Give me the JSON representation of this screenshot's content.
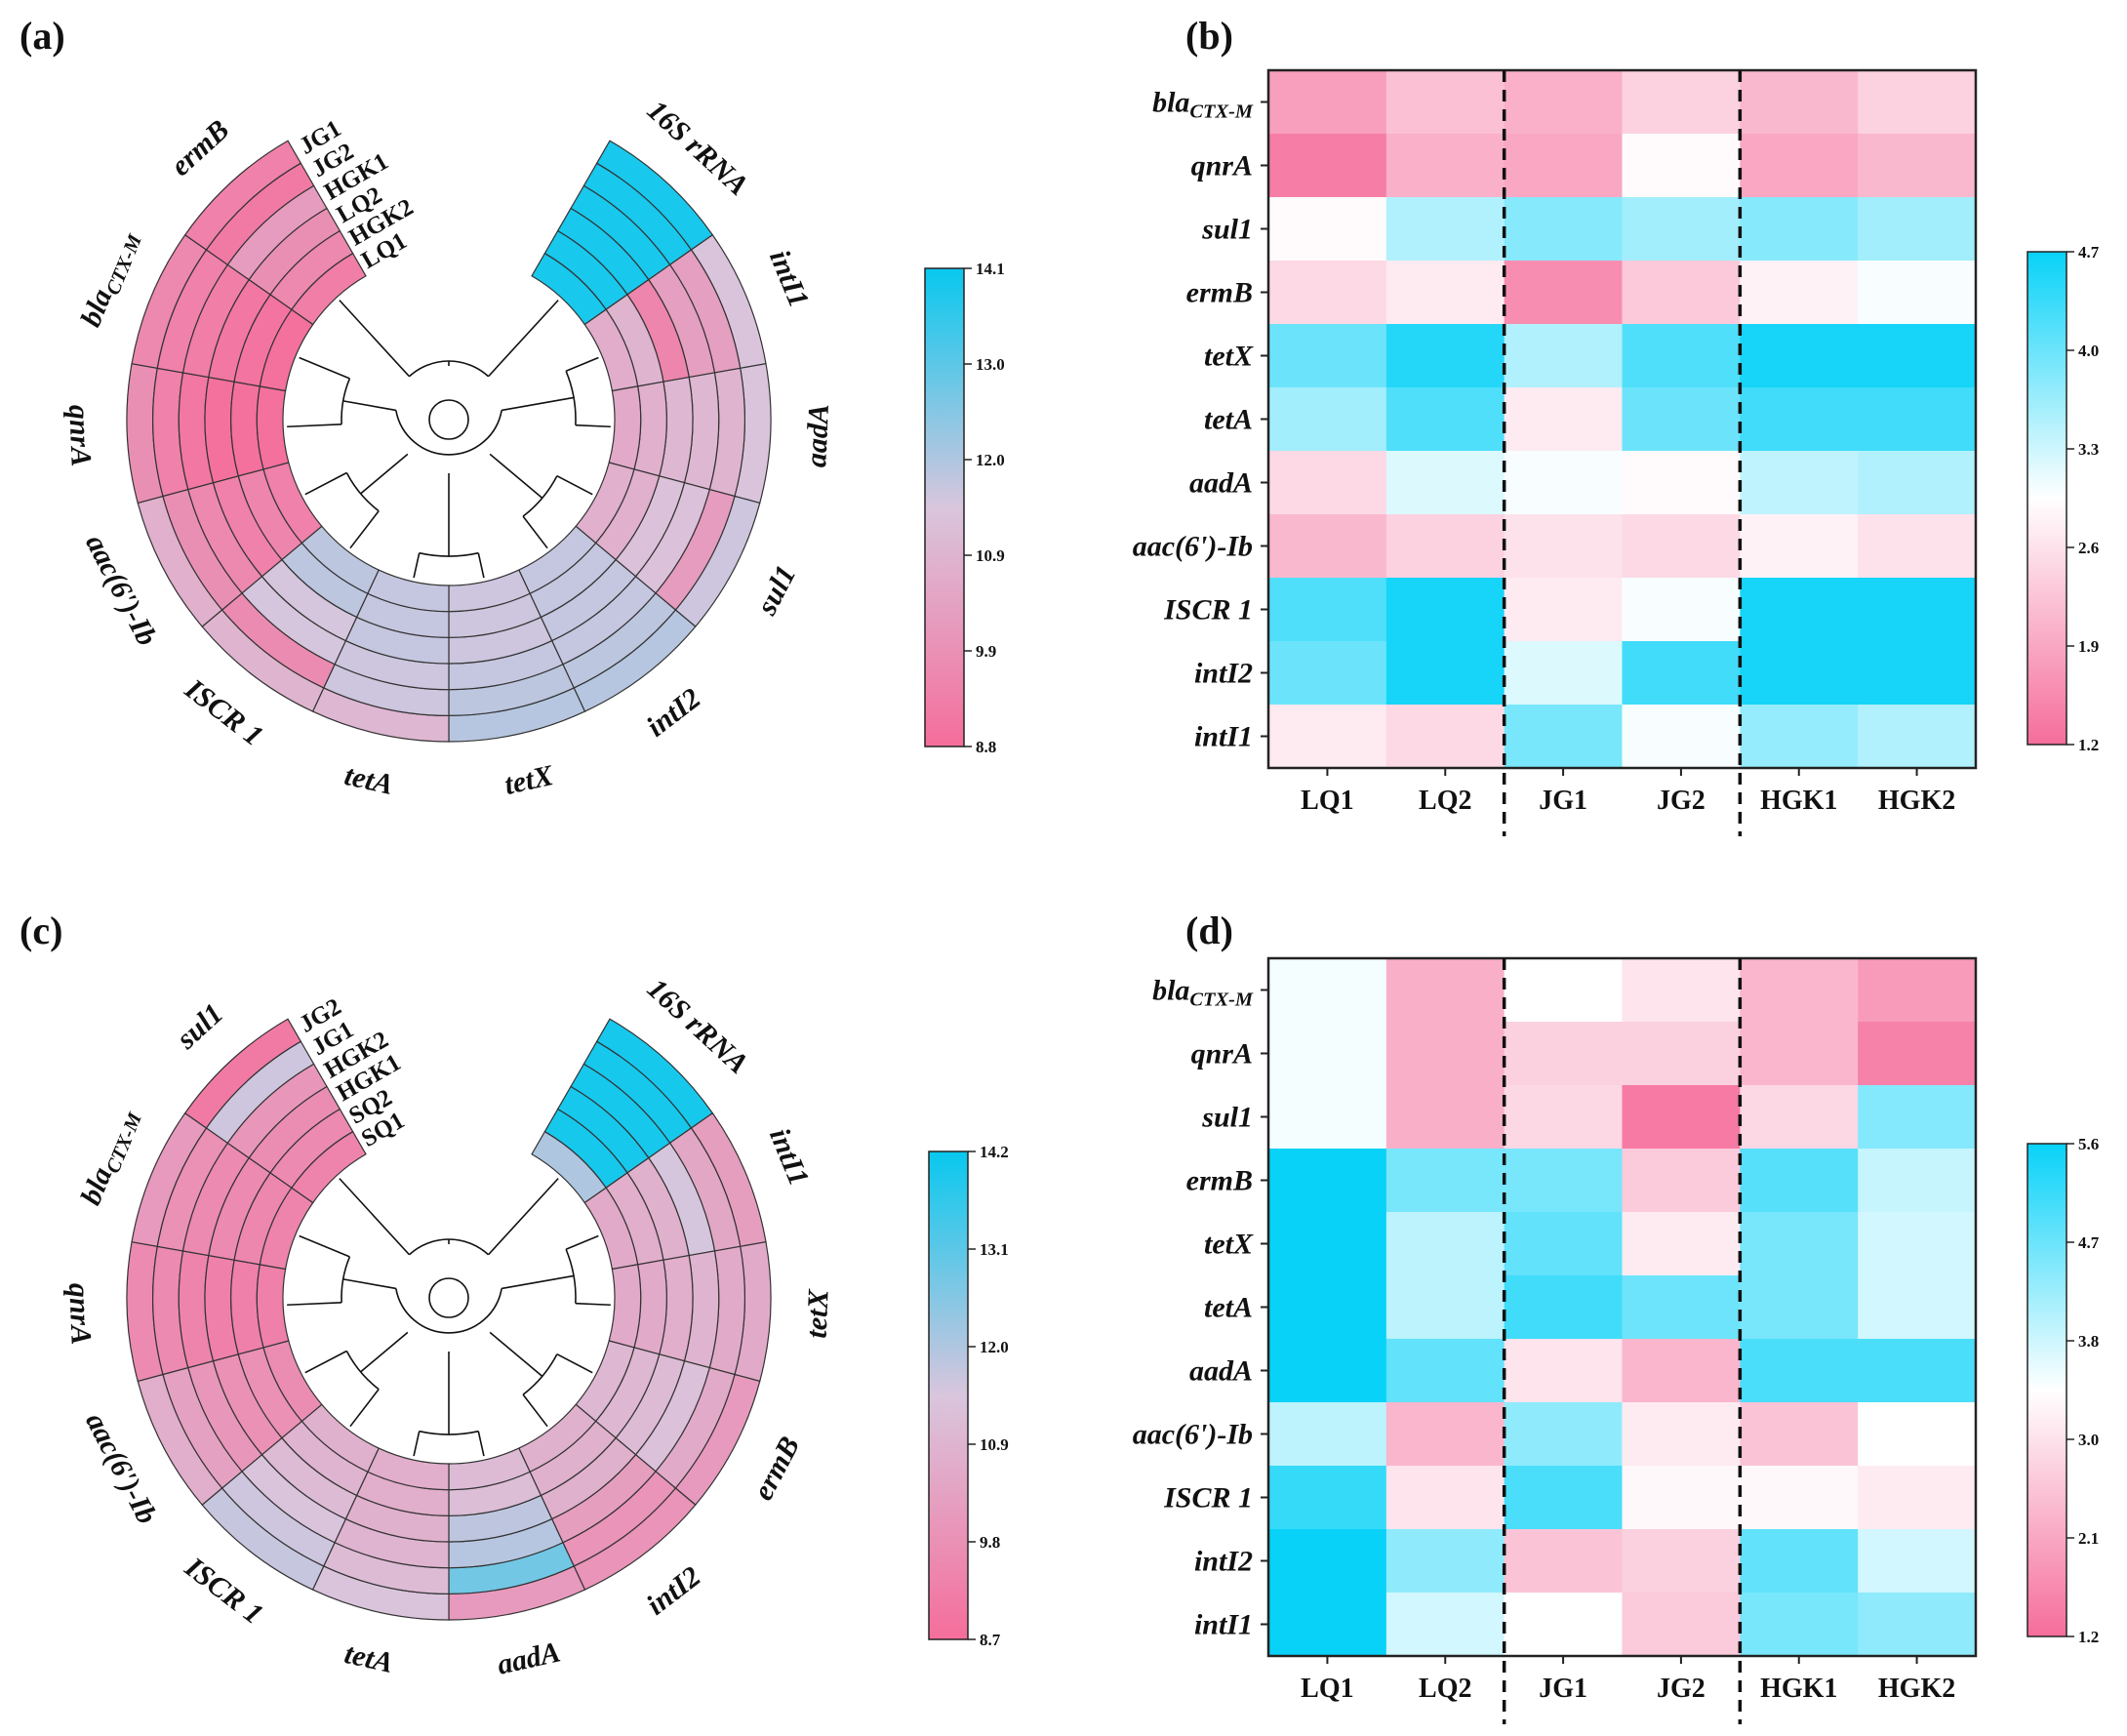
{
  "colors": {
    "low": "#f56d9b",
    "mid": "#ffffff",
    "high": "#08d2f8",
    "circ_low": "#f56d9b",
    "circ_mid": "#d9c6dd",
    "circ_high": "#08c8ee"
  },
  "chart_data": [
    {
      "panel": "(a)",
      "type": "circular-heatmap",
      "gene_order_clockwise": [
        "16S rRNA",
        "intI1",
        "aadA",
        "sul1",
        "intI2",
        "tetX",
        "tetA",
        "ISCR 1",
        "aac(6')-Ib",
        "qnrA",
        "blaCTX-M",
        "ermB"
      ],
      "ring_labels_outer_to_inner": [
        "JG1",
        "JG2",
        "HGK1",
        "LQ2",
        "HGK2",
        "LQ1"
      ],
      "values": [
        [
          13.9,
          13.9,
          13.9,
          13.9,
          13.9,
          13.9
        ],
        [
          11.4,
          10.3,
          10.3,
          9.5,
          10.9,
          10.7
        ],
        [
          11.4,
          10.9,
          11.0,
          11.0,
          10.8,
          10.6
        ],
        [
          11.6,
          10.2,
          11.3,
          11.3,
          10.8,
          10.8
        ],
        [
          11.9,
          11.8,
          11.7,
          11.7,
          11.7,
          11.7
        ],
        [
          11.9,
          11.8,
          11.7,
          11.6,
          11.6,
          11.6
        ],
        [
          11.0,
          11.6,
          11.6,
          11.7,
          11.7,
          11.7
        ],
        [
          10.9,
          9.7,
          11.5,
          11.5,
          11.8,
          11.8
        ],
        [
          10.8,
          9.8,
          9.6,
          9.4,
          9.5,
          9.4
        ],
        [
          9.8,
          9.4,
          9.1,
          8.9,
          8.9,
          8.9
        ],
        [
          9.6,
          9.4,
          9.3,
          9.1,
          9.0,
          8.9
        ],
        [
          9.4,
          9.2,
          10.2,
          9.8,
          9.6,
          9.3
        ]
      ],
      "colorbar": {
        "min": 8.8,
        "max": 14.1,
        "ticks": [
          "14.1",
          "13.0",
          "12.0",
          "10.9",
          "9.9",
          "8.8"
        ]
      }
    },
    {
      "panel": "(b)",
      "type": "heatmap",
      "rows": [
        "blaCTX-M",
        "qnrA",
        "sul1",
        "ermB",
        "tetX",
        "tetA",
        "aadA",
        "aac(6')-Ib",
        "ISCR 1",
        "intI2",
        "intI1"
      ],
      "columns": [
        "LQ1",
        "LQ2",
        "JG1",
        "JG2",
        "HGK1",
        "HGK2"
      ],
      "values": [
        [
          1.8,
          2.2,
          2.0,
          2.4,
          2.1,
          2.4
        ],
        [
          1.4,
          2.0,
          1.9,
          2.9,
          1.9,
          2.1
        ],
        [
          2.9,
          3.5,
          3.8,
          3.6,
          3.8,
          3.6
        ],
        [
          2.5,
          2.7,
          1.6,
          2.3,
          2.8,
          3.0
        ],
        [
          4.0,
          4.5,
          3.5,
          4.2,
          4.6,
          4.6
        ],
        [
          3.6,
          4.2,
          2.7,
          4.0,
          4.3,
          4.3
        ],
        [
          2.5,
          3.2,
          3.0,
          2.9,
          3.4,
          3.5
        ],
        [
          2.1,
          2.4,
          2.6,
          2.5,
          2.8,
          2.6
        ],
        [
          4.2,
          4.6,
          2.7,
          3.0,
          4.6,
          4.6
        ],
        [
          4.0,
          4.6,
          3.2,
          4.3,
          4.6,
          4.6
        ],
        [
          2.7,
          2.5,
          3.9,
          3.0,
          3.7,
          3.5
        ]
      ],
      "group_separators_after_column": [
        2,
        4
      ],
      "colorbar": {
        "min": 1.2,
        "max": 4.7,
        "ticks": [
          "4.7",
          "4.0",
          "3.3",
          "2.6",
          "1.9",
          "1.2"
        ]
      }
    },
    {
      "panel": "(c)",
      "type": "circular-heatmap",
      "gene_order_clockwise": [
        "16S rRNA",
        "intI1",
        "tetX",
        "ermB",
        "intI2",
        "aadA",
        "tetA",
        "ISCR 1",
        "aac(6')-Ib",
        "qnrA",
        "blaCTX-M",
        "sul1"
      ],
      "ring_labels_outer_to_inner": [
        "JG2",
        "JG1",
        "HGK2",
        "HGK1",
        "SQ2",
        "SQ1"
      ],
      "values": [
        [
          14.0,
          14.0,
          14.0,
          14.0,
          14.0,
          12.0
        ],
        [
          10.2,
          10.5,
          11.5,
          10.8,
          10.7,
          10.6
        ],
        [
          10.6,
          10.6,
          10.9,
          10.7,
          10.6,
          10.6
        ],
        [
          10.1,
          10.6,
          11.3,
          11.1,
          11.0,
          11.0
        ],
        [
          9.9,
          9.9,
          10.2,
          10.8,
          10.8,
          10.8
        ],
        [
          10.1,
          12.8,
          11.9,
          11.8,
          11.2,
          11.1
        ],
        [
          11.4,
          11.1,
          10.9,
          10.8,
          10.7,
          10.7
        ],
        [
          11.7,
          11.6,
          11.4,
          11.1,
          10.9,
          10.8
        ],
        [
          10.7,
          10.3,
          10.0,
          9.8,
          9.8,
          9.7
        ],
        [
          9.6,
          9.6,
          9.4,
          9.3,
          9.3,
          9.3
        ],
        [
          10.1,
          9.8,
          9.6,
          9.6,
          9.5,
          9.4
        ],
        [
          9.1,
          11.6,
          10.0,
          9.7,
          9.6,
          9.4
        ]
      ],
      "colorbar": {
        "min": 8.7,
        "max": 14.2,
        "ticks": [
          "14.2",
          "13.1",
          "12.0",
          "10.9",
          "9.8",
          "8.7"
        ]
      }
    },
    {
      "panel": "(d)",
      "type": "heatmap",
      "rows": [
        "blaCTX-M",
        "qnrA",
        "sul1",
        "ermB",
        "tetX",
        "tetA",
        "aadA",
        "aac(6')-Ib",
        "ISCR 1",
        "intI2",
        "intI1"
      ],
      "columns": [
        "LQ1",
        "LQ2",
        "JG1",
        "JG2",
        "HGK1",
        "HGK2"
      ],
      "values": [
        [
          3.5,
          2.2,
          3.4,
          3.0,
          2.3,
          1.9
        ],
        [
          3.5,
          2.2,
          2.7,
          2.7,
          2.3,
          1.5
        ],
        [
          3.5,
          2.2,
          2.8,
          1.4,
          2.8,
          4.5
        ],
        [
          5.6,
          4.6,
          4.6,
          2.6,
          4.9,
          3.9
        ],
        [
          5.6,
          4.0,
          4.8,
          3.1,
          4.6,
          3.8
        ],
        [
          5.6,
          4.0,
          5.1,
          4.7,
          4.6,
          3.8
        ],
        [
          5.6,
          4.8,
          3.0,
          2.3,
          5.0,
          5.0
        ],
        [
          4.0,
          2.3,
          4.4,
          3.1,
          2.5,
          3.4
        ],
        [
          5.2,
          3.0,
          5.0,
          3.3,
          3.3,
          3.1
        ],
        [
          5.6,
          4.4,
          2.5,
          2.7,
          4.8,
          3.8
        ],
        [
          5.6,
          3.8,
          3.4,
          2.6,
          4.6,
          4.4
        ]
      ],
      "group_separators_after_column": [
        2,
        4
      ],
      "colorbar": {
        "min": 1.2,
        "max": 5.6,
        "ticks": [
          "5.6",
          "4.7",
          "3.8",
          "3.0",
          "2.1",
          "1.2"
        ]
      }
    }
  ],
  "panel_labels": [
    "(a)",
    "(b)",
    "(c)",
    "(d)"
  ]
}
